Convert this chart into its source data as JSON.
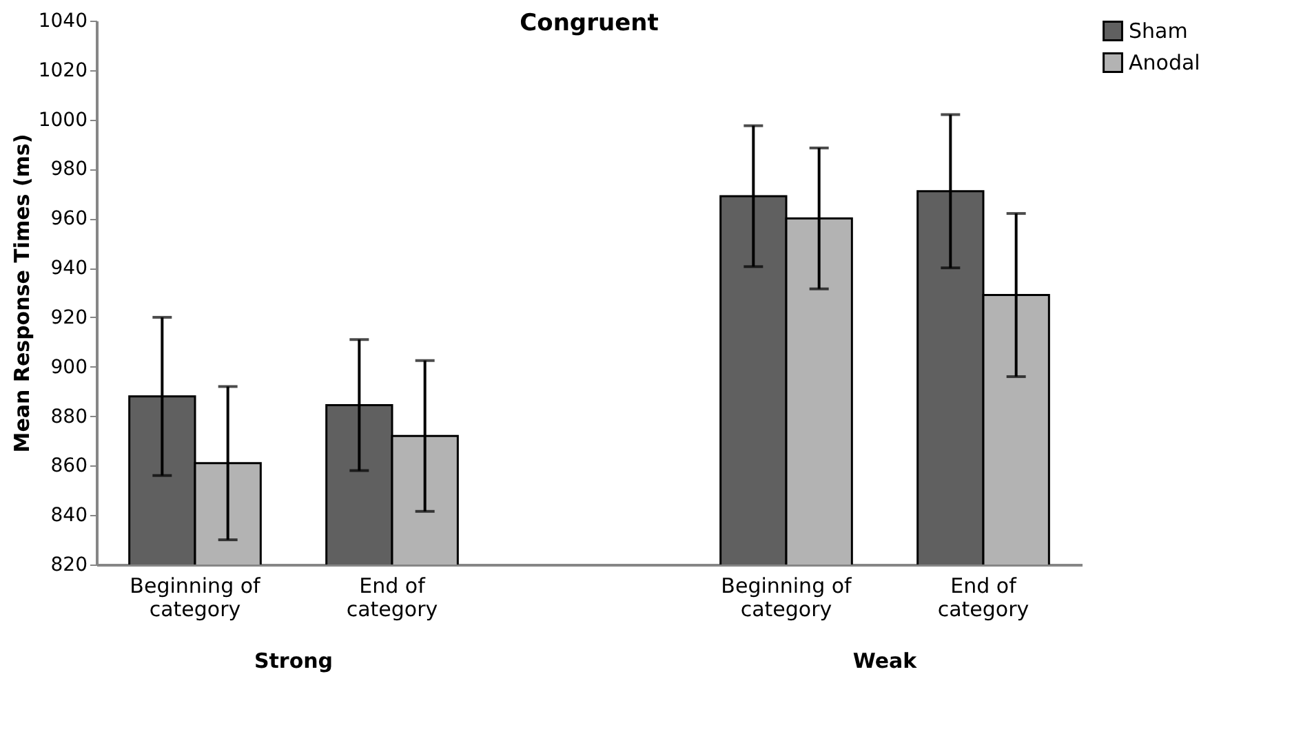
{
  "chart_data": {
    "type": "bar",
    "title": "Congruent",
    "ylabel": "Mean Response Times (ms)",
    "categories": [
      "Beginning of category",
      "End of category",
      null,
      "Beginning of category",
      "End of category"
    ],
    "series": [
      {
        "name": "Sham",
        "color": "#606060",
        "values": [
          888,
          884.5,
          null,
          969,
          971
        ],
        "errors": [
          32,
          26.5,
          null,
          28.5,
          31
        ]
      },
      {
        "name": "Anodal",
        "color": "#b3b3b3",
        "values": [
          861,
          872,
          null,
          960,
          929
        ],
        "errors": [
          31,
          30.5,
          null,
          28.5,
          33
        ]
      }
    ],
    "ylim": [
      820,
      1040
    ],
    "yticks": [
      820,
      840,
      860,
      880,
      900,
      920,
      940,
      960,
      980,
      1000,
      1020,
      1040
    ],
    "annotations": [
      "Strong",
      "Weak"
    ],
    "grid": false,
    "legend": "right"
  }
}
